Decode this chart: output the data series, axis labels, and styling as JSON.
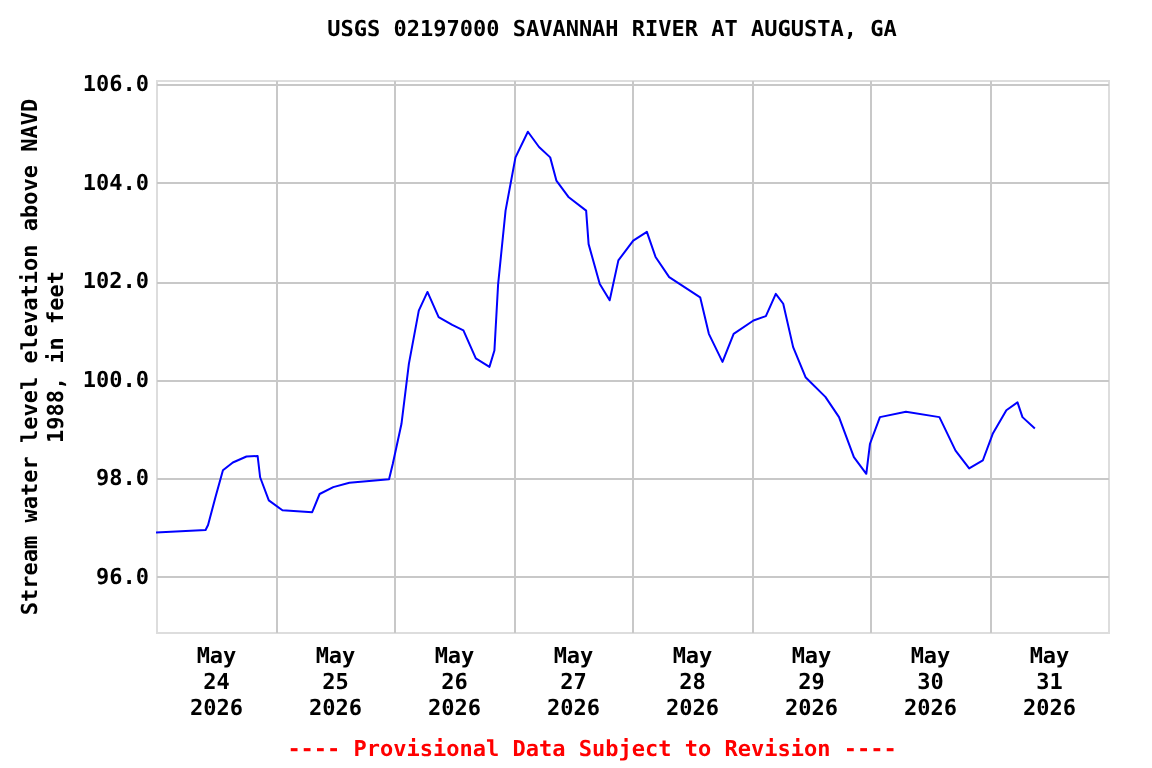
{
  "chart_data": {
    "type": "line",
    "title": "USGS 02197000 SAVANNAH RIVER AT AUGUSTA, GA",
    "ylabel": "Stream water level elevation above NAVD\n1988, in feet",
    "annotations": [
      "---- Provisional Data Subject to Revision ----"
    ],
    "xlim": [
      "2026-05-24T00:00",
      "2026-06-01T00:00"
    ],
    "xticks": [
      {
        "value": "2026-05-24T12:00",
        "label": "May\n24\n2026"
      },
      {
        "value": "2026-05-25T00:00",
        "label": null
      },
      {
        "value": "2026-05-25T12:00",
        "label": "May\n25\n2026"
      },
      {
        "value": "2026-05-26T00:00",
        "label": null
      },
      {
        "value": "2026-05-26T12:00",
        "label": "May\n26\n2026"
      },
      {
        "value": "2026-05-27T00:00",
        "label": null
      },
      {
        "value": "2026-05-27T12:00",
        "label": "May\n27\n2026"
      },
      {
        "value": "2026-05-28T00:00",
        "label": null
      },
      {
        "value": "2026-05-28T12:00",
        "label": "May\n28\n2026"
      },
      {
        "value": "2026-05-29T00:00",
        "label": null
      },
      {
        "value": "2026-05-29T12:00",
        "label": "May\n29\n2026"
      },
      {
        "value": "2026-05-30T00:00",
        "label": null
      },
      {
        "value": "2026-05-30T12:00",
        "label": "May\n30\n2026"
      },
      {
        "value": "2026-05-31T00:00",
        "label": null
      },
      {
        "value": "2026-05-31T12:00",
        "label": "May\n31\n2026"
      }
    ],
    "ylim": [
      94.88,
      106.08
    ],
    "yticks": [
      {
        "value": 96,
        "label": "96.0"
      },
      {
        "value": 98,
        "label": "98.0"
      },
      {
        "value": 100,
        "label": "100.0"
      },
      {
        "value": 102,
        "label": "102.0"
      },
      {
        "value": 104,
        "label": "104.0"
      },
      {
        "value": 106,
        "label": "106.0"
      }
    ],
    "grid": true,
    "marker": "none",
    "line_style": "solid",
    "x": [
      "2026-05-24T00:00",
      "2026-05-24T10:00",
      "2026-05-24T10:30",
      "2026-05-24T12:00",
      "2026-05-24T13:30",
      "2026-05-24T15:30",
      "2026-05-24T18:15",
      "2026-05-24T20:30",
      "2026-05-24T21:00",
      "2026-05-24T22:45",
      "2026-05-25T01:30",
      "2026-05-25T07:30",
      "2026-05-25T09:00",
      "2026-05-25T11:45",
      "2026-05-25T15:00",
      "2026-05-25T23:00",
      "2026-05-25T23:45",
      "2026-05-26T01:30",
      "2026-05-26T03:00",
      "2026-05-26T05:00",
      "2026-05-26T06:45",
      "2026-05-26T09:00",
      "2026-05-26T11:45",
      "2026-05-26T14:00",
      "2026-05-26T16:30",
      "2026-05-26T19:15",
      "2026-05-26T20:15",
      "2026-05-26T21:00",
      "2026-05-26T22:30",
      "2026-05-27T00:30",
      "2026-05-27T03:00",
      "2026-05-27T05:15",
      "2026-05-27T07:30",
      "2026-05-27T08:45",
      "2026-05-27T11:15",
      "2026-05-27T14:45",
      "2026-05-27T15:15",
      "2026-05-27T17:30",
      "2026-05-27T19:30",
      "2026-05-27T21:15",
      "2026-05-28T00:15",
      "2026-05-28T03:00",
      "2026-05-28T04:45",
      "2026-05-28T07:30",
      "2026-05-28T13:45",
      "2026-05-28T15:30",
      "2026-05-28T18:15",
      "2026-05-28T20:30",
      "2026-05-29T00:30",
      "2026-05-29T03:00",
      "2026-05-29T05:00",
      "2026-05-29T06:30",
      "2026-05-29T08:30",
      "2026-05-29T11:00",
      "2026-05-29T15:00",
      "2026-05-29T17:45",
      "2026-05-29T20:45",
      "2026-05-29T23:15",
      "2026-05-30T00:00",
      "2026-05-30T02:00",
      "2026-05-30T07:15",
      "2026-05-30T14:00",
      "2026-05-30T17:15",
      "2026-05-30T20:00",
      "2026-05-30T22:45",
      "2026-05-31T00:45",
      "2026-05-31T03:30",
      "2026-05-31T05:45",
      "2026-05-31T06:45",
      "2026-05-31T09:15"
    ],
    "series": [
      {
        "color": "#0000ff",
        "values": [
          96.9,
          96.95,
          97.05,
          97.62,
          98.16,
          98.32,
          98.44,
          98.45,
          98.02,
          97.55,
          97.35,
          97.31,
          97.68,
          97.82,
          97.91,
          97.98,
          98.29,
          99.1,
          100.32,
          101.4,
          101.78,
          101.27,
          101.11,
          101.0,
          100.43,
          100.26,
          100.59,
          101.94,
          103.43,
          104.51,
          105.03,
          104.72,
          104.51,
          104.04,
          103.7,
          103.43,
          102.75,
          101.94,
          101.61,
          102.42,
          102.82,
          103.0,
          102.49,
          102.08,
          101.67,
          100.93,
          100.36,
          100.93,
          101.2,
          101.29,
          101.74,
          101.54,
          100.66,
          100.05,
          99.65,
          99.24,
          98.43,
          98.09,
          98.7,
          99.24,
          99.35,
          99.24,
          98.56,
          98.2,
          98.36,
          98.9,
          99.38,
          99.54,
          99.24,
          99.01
        ]
      }
    ]
  }
}
